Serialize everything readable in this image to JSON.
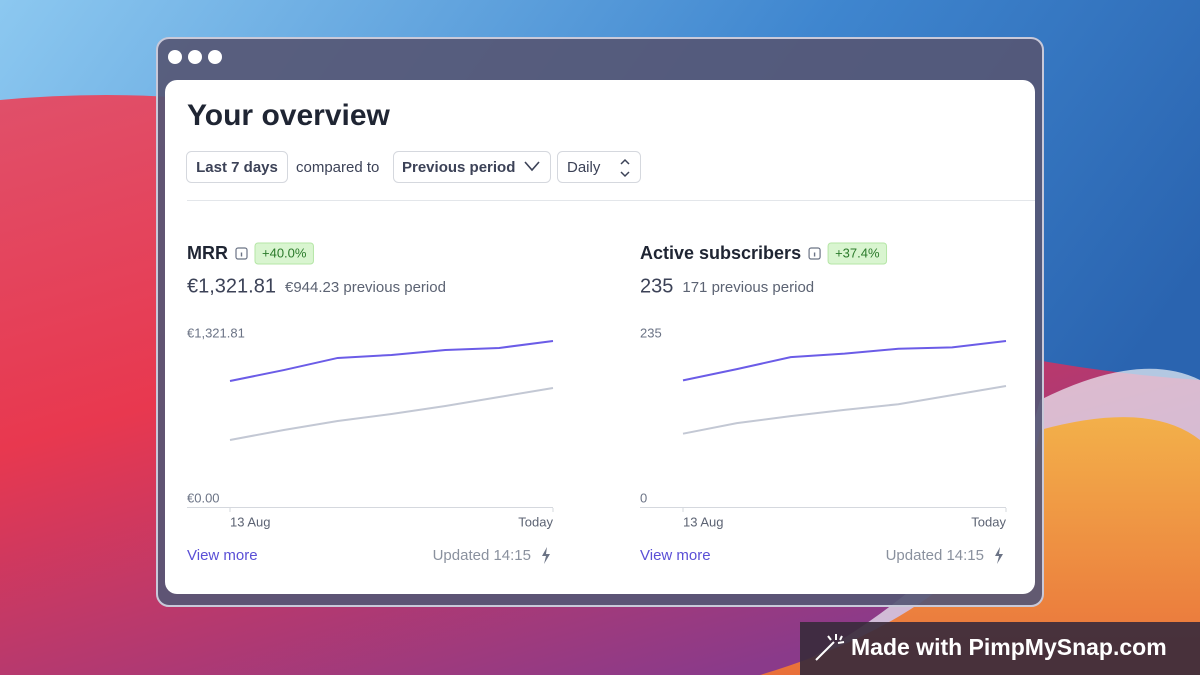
{
  "header": {
    "title": "Your overview"
  },
  "filters": {
    "range": "Last 7 days",
    "compared_label": "compared to",
    "comparison": "Previous period",
    "interval": "Daily"
  },
  "panels": [
    {
      "title": "MRR",
      "change": "+40.0%",
      "current": "€1,321.81",
      "previous": "€944.23 previous period",
      "link": "View more",
      "updated": "Updated 14:15",
      "chart_data": {
        "type": "line",
        "categories": [
          "13 Aug",
          null,
          null,
          null,
          null,
          null,
          "Today"
        ],
        "series": [
          {
            "color": "#6b5ce7",
            "values": [
              945,
              1033,
              1130,
              1154,
              1194,
              1210,
              1266
            ]
          },
          {
            "color": "#c3c8d4",
            "values": [
              473,
              553,
              625,
              681,
              745,
              817,
              889
            ]
          }
        ],
        "ylim": [
          0,
          1321.81
        ],
        "yticks": [
          {
            "value": 0,
            "label": "€0.00"
          },
          {
            "value": 1321.81,
            "label": "€1,321.81"
          }
        ]
      }
    },
    {
      "title": "Active subscribers",
      "change": "+37.4%",
      "current": "235",
      "previous": "171 previous period",
      "link": "View more",
      "updated": "Updated 14:15",
      "chart_data": {
        "type": "line",
        "categories": [
          "13 Aug",
          null,
          null,
          null,
          null,
          null,
          "Today"
        ],
        "series": [
          {
            "color": "#6b5ce7",
            "values": [
              169,
              185,
              202,
              207,
              214,
              216,
              225
            ]
          },
          {
            "color": "#c3c8d4",
            "values": [
              93,
              108,
              118,
              127,
              135,
              148,
              161
            ]
          }
        ],
        "ylim": [
          0,
          235
        ],
        "yticks": [
          0,
          235
        ]
      }
    }
  ],
  "badge": "Made with PimpMySnap.com"
}
